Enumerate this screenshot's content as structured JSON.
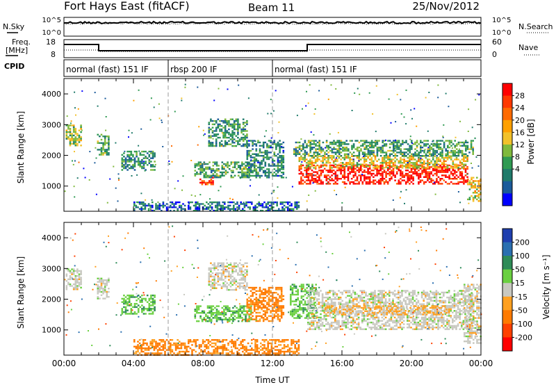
{
  "header": {
    "station": "Fort Hays East (fitACF)",
    "beam": "Beam 11",
    "date": "25/Nov/2012"
  },
  "top_panels": {
    "nsky_label": "N.Sky",
    "nsearch_label": "N.Search",
    "freq_label_line1": "Freq.",
    "freq_label_line2": "[MHz]",
    "nave_label": "Nave",
    "cpid_label": "CPID",
    "noise_ticks_left": [
      "10^5",
      "10^0"
    ],
    "noise_ticks_right": [
      "10^5",
      "10^0"
    ],
    "freq_ticks": [
      "18",
      "8"
    ],
    "nave_ticks": [
      "60",
      "0"
    ]
  },
  "cpid": [
    {
      "label": "normal (fast) 151 IF",
      "start_hour": 0,
      "end_hour": 6
    },
    {
      "label": "rbsp 200 IF",
      "start_hour": 6,
      "end_hour": 12
    },
    {
      "label": "normal (fast) 151 IF",
      "start_hour": 12,
      "end_hour": 24
    }
  ],
  "colorbars": {
    "power": {
      "label": "Power [dB]",
      "ticks": [
        "28",
        "24",
        "20",
        "16",
        "12",
        "8",
        "4"
      ],
      "colors": [
        "#ff0000",
        "#ff3800",
        "#ff6a00",
        "#ffa000",
        "#f2c12a",
        "#7fb93c",
        "#2f9a52",
        "#1f7a6a",
        "#1a5a9a",
        "#0000ff"
      ]
    },
    "velocity": {
      "label": "Velocity [m s⁻¹]",
      "ticks": [
        "200",
        "100",
        "50",
        "15",
        "-15",
        "-50",
        "-100",
        "-200"
      ],
      "colors": [
        "#1f3faf",
        "#2a6fb0",
        "#2e8b57",
        "#6ad040",
        "#c8c8c0",
        "#ffa020",
        "#ff7a00",
        "#ff4000",
        "#ff0000"
      ]
    }
  },
  "chart_data": [
    {
      "type": "heatmap",
      "name": "Power",
      "ylabel": "Slant Range [km]",
      "yticks": [
        "4000",
        "3000",
        "2000",
        "1000"
      ],
      "ylim": [
        180,
        4500
      ],
      "xlim": [
        0,
        24
      ],
      "regions": [
        {
          "t0": 0.1,
          "t1": 1.0,
          "r0": 2300,
          "r1": 3000,
          "level": 0.45
        },
        {
          "t0": 1.9,
          "t1": 2.6,
          "r0": 2000,
          "r1": 2700,
          "level": 0.35
        },
        {
          "t0": 3.3,
          "t1": 5.2,
          "r0": 1550,
          "r1": 2150,
          "level": 0.3
        },
        {
          "t0": 7.5,
          "t1": 10.8,
          "r0": 1300,
          "r1": 1800,
          "level": 0.35
        },
        {
          "t0": 7.8,
          "t1": 8.6,
          "r0": 1050,
          "r1": 1300,
          "level": 0.85
        },
        {
          "t0": 8.3,
          "t1": 10.5,
          "r0": 2300,
          "r1": 3200,
          "level": 0.3
        },
        {
          "t0": 10.5,
          "t1": 12.6,
          "r0": 1300,
          "r1": 2500,
          "level": 0.25
        },
        {
          "t0": 13.5,
          "t1": 23.2,
          "r0": 1050,
          "r1": 1700,
          "level": 0.95
        },
        {
          "t0": 13.5,
          "t1": 23.2,
          "r0": 1600,
          "r1": 2000,
          "level": 0.55
        },
        {
          "t0": 13.2,
          "t1": 23.5,
          "r0": 2000,
          "r1": 2500,
          "level": 0.35
        },
        {
          "t0": 23.2,
          "t1": 24.0,
          "r0": 500,
          "r1": 1300,
          "level": 0.55
        },
        {
          "t0": 4.0,
          "t1": 13.5,
          "r0": 200,
          "r1": 500,
          "level": 0.2
        }
      ]
    },
    {
      "type": "heatmap",
      "name": "Velocity",
      "ylabel": "Slant Range [km]",
      "yticks": [
        "4000",
        "3000",
        "2000",
        "1000"
      ],
      "xlabel": "Time UT",
      "xticks": [
        "00:00",
        "04:00",
        "08:00",
        "12:00",
        "16:00",
        "20:00",
        "00:00"
      ],
      "ylim": [
        180,
        4500
      ],
      "xlim": [
        0,
        24
      ],
      "regions": [
        {
          "t0": 0.1,
          "t1": 1.0,
          "r0": 2300,
          "r1": 3000,
          "vel": 0
        },
        {
          "t0": 1.9,
          "t1": 2.6,
          "r0": 2000,
          "r1": 2700,
          "vel": 0
        },
        {
          "t0": 3.3,
          "t1": 5.2,
          "r0": 1550,
          "r1": 2150,
          "vel": 40
        },
        {
          "t0": 7.5,
          "t1": 10.8,
          "r0": 1300,
          "r1": 1800,
          "vel": 40
        },
        {
          "t0": 8.3,
          "t1": 10.5,
          "r0": 2300,
          "r1": 3200,
          "vel": 0
        },
        {
          "t0": 10.5,
          "t1": 12.6,
          "r0": 1300,
          "r1": 2400,
          "vel": -60
        },
        {
          "t0": 13.0,
          "t1": 14.5,
          "r0": 1400,
          "r1": 2500,
          "vel": 40
        },
        {
          "t0": 14.0,
          "t1": 23.5,
          "r0": 1050,
          "r1": 2300,
          "vel": 0
        },
        {
          "t0": 15.0,
          "t1": 22.0,
          "r0": 1500,
          "r1": 1800,
          "vel": -20
        },
        {
          "t0": 23.0,
          "t1": 24.0,
          "r0": 600,
          "r1": 2500,
          "vel": 0
        },
        {
          "t0": 4.0,
          "t1": 13.5,
          "r0": 200,
          "r1": 700,
          "vel": -60
        }
      ]
    }
  ]
}
